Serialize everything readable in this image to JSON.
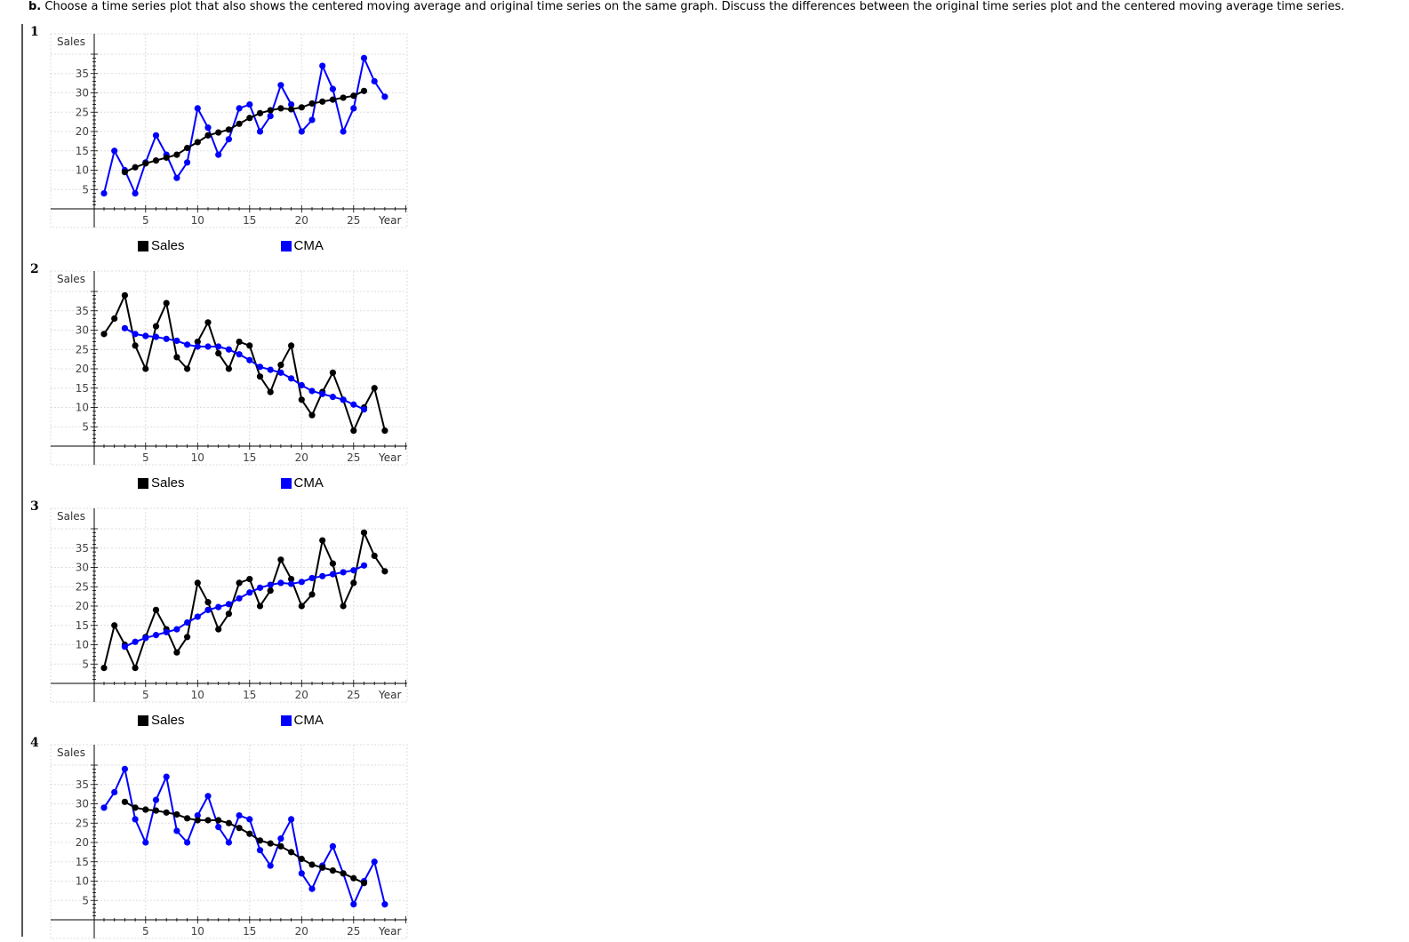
{
  "question": {
    "prefix": "b.",
    "text": " Choose a time series plot that also shows the centered moving average and original time series on the same graph. Discuss the differences between the original time series plot and the centered moving average time series."
  },
  "options": [
    {
      "number": "1",
      "trend": "up",
      "sales_color": "#0000ff",
      "cma_color": "#000000"
    },
    {
      "number": "2",
      "trend": "down",
      "sales_color": "#000000",
      "cma_color": "#0000ff"
    },
    {
      "number": "3",
      "trend": "up",
      "sales_color": "#000000",
      "cma_color": "#0000ff"
    },
    {
      "number": "4",
      "trend": "down",
      "sales_color": "#0000ff",
      "cma_color": "#000000"
    }
  ],
  "legend": {
    "sales_label": "Sales",
    "cma_label": "CMA",
    "sales_swatch": "#000000",
    "cma_swatch": "#0000ff"
  },
  "chart_data": {
    "type": "line",
    "xlabel": "Year",
    "ylabel": "Sales",
    "xlim": [
      1,
      28
    ],
    "ylim": [
      0,
      40
    ],
    "x_ticks": [
      5,
      10,
      15,
      20,
      25
    ],
    "y_ticks": [
      5,
      10,
      15,
      20,
      25,
      30,
      35
    ],
    "grid": true,
    "sales_up": [
      {
        "x": 1,
        "y": 4
      },
      {
        "x": 2,
        "y": 15
      },
      {
        "x": 3,
        "y": 10
      },
      {
        "x": 4,
        "y": 4
      },
      {
        "x": 5,
        "y": 12
      },
      {
        "x": 6,
        "y": 19
      },
      {
        "x": 7,
        "y": 14
      },
      {
        "x": 8,
        "y": 8
      },
      {
        "x": 9,
        "y": 12
      },
      {
        "x": 10,
        "y": 26
      },
      {
        "x": 11,
        "y": 21
      },
      {
        "x": 12,
        "y": 14
      },
      {
        "x": 13,
        "y": 18
      },
      {
        "x": 14,
        "y": 26
      },
      {
        "x": 15,
        "y": 27
      },
      {
        "x": 16,
        "y": 20
      },
      {
        "x": 17,
        "y": 24
      },
      {
        "x": 18,
        "y": 32
      },
      {
        "x": 19,
        "y": 27
      },
      {
        "x": 20,
        "y": 20
      },
      {
        "x": 21,
        "y": 23
      },
      {
        "x": 22,
        "y": 37
      },
      {
        "x": 23,
        "y": 31
      },
      {
        "x": 24,
        "y": 20
      },
      {
        "x": 25,
        "y": 26
      },
      {
        "x": 26,
        "y": 39
      },
      {
        "x": 27,
        "y": 33
      },
      {
        "x": 28,
        "y": 29
      }
    ],
    "cma_up": [
      {
        "x": 3,
        "y": 9.5
      },
      {
        "x": 4,
        "y": 10.75
      },
      {
        "x": 5,
        "y": 11.75
      },
      {
        "x": 6,
        "y": 12.5
      },
      {
        "x": 7,
        "y": 13.25
      },
      {
        "x": 8,
        "y": 14
      },
      {
        "x": 9,
        "y": 15.75
      },
      {
        "x": 10,
        "y": 17.25
      },
      {
        "x": 11,
        "y": 19
      },
      {
        "x": 12,
        "y": 19.75
      },
      {
        "x": 13,
        "y": 20.5
      },
      {
        "x": 14,
        "y": 22
      },
      {
        "x": 15,
        "y": 23.5
      },
      {
        "x": 16,
        "y": 24.75
      },
      {
        "x": 17,
        "y": 25.5
      },
      {
        "x": 18,
        "y": 26
      },
      {
        "x": 19,
        "y": 25.75
      },
      {
        "x": 20,
        "y": 26.25
      },
      {
        "x": 21,
        "y": 27.25
      },
      {
        "x": 22,
        "y": 27.75
      },
      {
        "x": 23,
        "y": 28.25
      },
      {
        "x": 24,
        "y": 28.75
      },
      {
        "x": 25,
        "y": 29.25
      },
      {
        "x": 26,
        "y": 30.5
      }
    ],
    "sales_down": [
      {
        "x": 1,
        "y": 29
      },
      {
        "x": 2,
        "y": 33
      },
      {
        "x": 3,
        "y": 39
      },
      {
        "x": 4,
        "y": 26
      },
      {
        "x": 5,
        "y": 20
      },
      {
        "x": 6,
        "y": 31
      },
      {
        "x": 7,
        "y": 37
      },
      {
        "x": 8,
        "y": 23
      },
      {
        "x": 9,
        "y": 20
      },
      {
        "x": 10,
        "y": 27
      },
      {
        "x": 11,
        "y": 32
      },
      {
        "x": 12,
        "y": 24
      },
      {
        "x": 13,
        "y": 20
      },
      {
        "x": 14,
        "y": 27
      },
      {
        "x": 15,
        "y": 26
      },
      {
        "x": 16,
        "y": 18
      },
      {
        "x": 17,
        "y": 14
      },
      {
        "x": 18,
        "y": 21
      },
      {
        "x": 19,
        "y": 26
      },
      {
        "x": 20,
        "y": 12
      },
      {
        "x": 21,
        "y": 8
      },
      {
        "x": 22,
        "y": 14
      },
      {
        "x": 23,
        "y": 19
      },
      {
        "x": 24,
        "y": 12
      },
      {
        "x": 25,
        "y": 4
      },
      {
        "x": 26,
        "y": 10
      },
      {
        "x": 27,
        "y": 15
      },
      {
        "x": 28,
        "y": 4
      }
    ],
    "cma_down": [
      {
        "x": 3,
        "y": 30.5
      },
      {
        "x": 4,
        "y": 29
      },
      {
        "x": 5,
        "y": 28.5
      },
      {
        "x": 6,
        "y": 28.25
      },
      {
        "x": 7,
        "y": 27.75
      },
      {
        "x": 8,
        "y": 27.25
      },
      {
        "x": 9,
        "y": 26.25
      },
      {
        "x": 10,
        "y": 25.75
      },
      {
        "x": 11,
        "y": 25.75
      },
      {
        "x": 12,
        "y": 25.75
      },
      {
        "x": 13,
        "y": 25
      },
      {
        "x": 14,
        "y": 23.75
      },
      {
        "x": 15,
        "y": 22.25
      },
      {
        "x": 16,
        "y": 20.5
      },
      {
        "x": 17,
        "y": 19.75
      },
      {
        "x": 18,
        "y": 19
      },
      {
        "x": 19,
        "y": 17.5
      },
      {
        "x": 20,
        "y": 15.75
      },
      {
        "x": 21,
        "y": 14.25
      },
      {
        "x": 22,
        "y": 13.5
      },
      {
        "x": 23,
        "y": 12.75
      },
      {
        "x": 24,
        "y": 12
      },
      {
        "x": 25,
        "y": 10.75
      },
      {
        "x": 26,
        "y": 9.5
      }
    ]
  }
}
